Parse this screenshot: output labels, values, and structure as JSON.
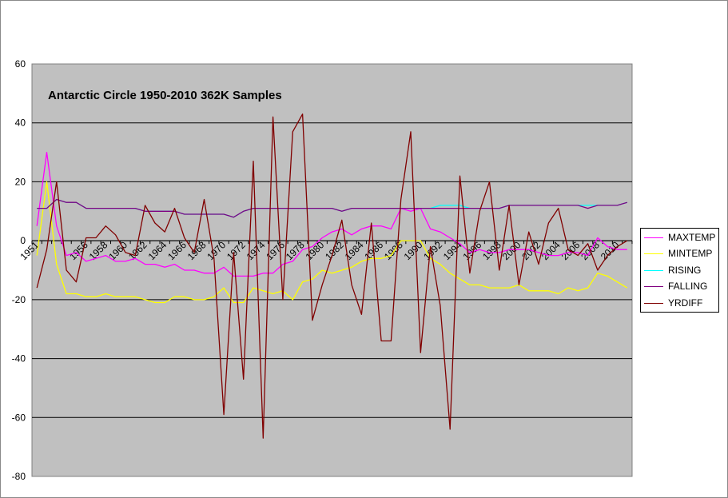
{
  "chart_data": {
    "type": "line",
    "title": "Antarctic Circle 1950-2010 362K Samples",
    "xlabel": "",
    "ylabel": "",
    "ylim": [
      -80,
      60
    ],
    "yticks": [
      "60",
      "40",
      "20",
      "0",
      "-20",
      "-40",
      "-60",
      "-80"
    ],
    "x": [
      1951,
      1952,
      1953,
      1954,
      1955,
      1956,
      1957,
      1958,
      1959,
      1960,
      1961,
      1962,
      1963,
      1964,
      1965,
      1966,
      1967,
      1968,
      1969,
      1970,
      1971,
      1972,
      1973,
      1974,
      1975,
      1976,
      1977,
      1978,
      1979,
      1980,
      1981,
      1982,
      1983,
      1984,
      1985,
      1986,
      1987,
      1988,
      1989,
      1990,
      1991,
      1992,
      1993,
      1994,
      1995,
      1996,
      1997,
      1998,
      1999,
      2000,
      2001,
      2002,
      2003,
      2004,
      2005,
      2006,
      2007,
      2008,
      2009,
      2010,
      2011
    ],
    "xtick_labels": [
      "1951",
      "1956",
      "1958",
      "1960",
      "1962",
      "1964",
      "1966",
      "1968",
      "1970",
      "1972",
      "1974",
      "1976",
      "1978",
      "1980",
      "1982",
      "1984",
      "1986",
      "1988",
      "1990",
      "1992",
      "1994",
      "1996",
      "1998",
      "2000",
      "2002",
      "2004",
      "2006",
      "2008",
      "2010"
    ],
    "grid": true,
    "plot_background": "#c0c0c0",
    "legend_position": "right",
    "series": [
      {
        "name": "MAXTEMP",
        "color": "#ff00ff",
        "values": [
          5,
          30,
          5,
          -5,
          -4,
          -7,
          -6,
          -5,
          -7,
          -7,
          -6,
          -8,
          -8,
          -9,
          -8,
          -10,
          -10,
          -11,
          -11,
          -9,
          -12,
          -12,
          -12,
          -11,
          -11,
          -8,
          -7,
          -3,
          -2,
          1,
          3,
          4,
          2,
          4,
          5,
          5,
          4,
          11,
          10,
          11,
          4,
          3,
          1,
          -1,
          -4,
          -3,
          -4,
          -4,
          -3,
          -3,
          -3,
          -4,
          -5,
          -5,
          -4,
          -4,
          -5,
          1,
          -2,
          -3,
          -3
        ]
      },
      {
        "name": "MINTEMP",
        "color": "#ffff00",
        "values": [
          -5,
          20,
          -8,
          -18,
          -18,
          -19,
          -19,
          -18,
          -19,
          -19,
          -19,
          -20,
          -21,
          -21,
          -19,
          -19,
          -20,
          -20,
          -19,
          -16,
          -21,
          -21,
          -16,
          -17,
          -18,
          -17,
          -20,
          -14,
          -13,
          -10,
          -11,
          -10,
          -9,
          -7,
          -6,
          -6,
          -5,
          0,
          0,
          0,
          -6,
          -8,
          -11,
          -13,
          -15,
          -15,
          -16,
          -16,
          -16,
          -15,
          -17,
          -17,
          -17,
          -18,
          -16,
          -17,
          -16,
          -11,
          -12,
          -14,
          -16
        ]
      },
      {
        "name": "RISING",
        "color": "#00ffff",
        "values": [
          11,
          11,
          14,
          13,
          13,
          11,
          11,
          11,
          11,
          11,
          11,
          10,
          10,
          10,
          10,
          9,
          9,
          9,
          9,
          9,
          8,
          10,
          11,
          11,
          11,
          11,
          11,
          11,
          11,
          11,
          11,
          10,
          11,
          11,
          11,
          11,
          11,
          11,
          11,
          11,
          11,
          12,
          12,
          12,
          11,
          11,
          11,
          11,
          12,
          12,
          12,
          12,
          12,
          12,
          12,
          12,
          12,
          12,
          12,
          12,
          13
        ]
      },
      {
        "name": "FALLING",
        "color": "#800080",
        "values": [
          11,
          11,
          14,
          13,
          13,
          11,
          11,
          11,
          11,
          11,
          11,
          10,
          10,
          10,
          10,
          9,
          9,
          9,
          9,
          9,
          8,
          10,
          11,
          11,
          11,
          11,
          11,
          11,
          11,
          11,
          11,
          10,
          11,
          11,
          11,
          11,
          11,
          11,
          11,
          11,
          11,
          11,
          11,
          11,
          11,
          11,
          11,
          11,
          12,
          12,
          12,
          12,
          12,
          12,
          12,
          12,
          11,
          12,
          12,
          12,
          13
        ]
      },
      {
        "name": "YRDIFF",
        "color": "#800000",
        "values": [
          -16,
          -3,
          20,
          -10,
          -14,
          1,
          1,
          5,
          2,
          -4,
          -5,
          12,
          6,
          3,
          11,
          1,
          -4,
          14,
          -6,
          -59,
          -4,
          -47,
          27,
          -67,
          42,
          -20,
          37,
          43,
          -27,
          -15,
          -5,
          7,
          -15,
          -25,
          6,
          -34,
          -34,
          14,
          37,
          -38,
          -2,
          -22,
          -64,
          22,
          -11,
          10,
          20,
          -10,
          12,
          -15,
          3,
          -8,
          6,
          11,
          -3,
          -5,
          -1,
          -10,
          -5,
          -2,
          0
        ]
      }
    ]
  }
}
